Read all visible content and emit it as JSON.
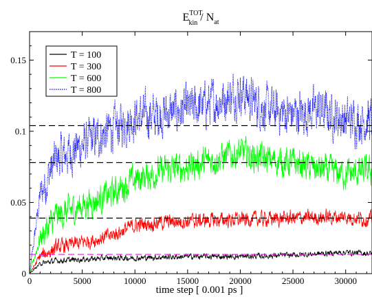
{
  "chart_data": {
    "type": "line",
    "title": {
      "main": "E",
      "superscript": "TOT",
      "subscript": "kin",
      "separator": " / N",
      "subscript2": "at"
    },
    "xlabel": "time step [ 0.001 ps ]",
    "ylabel": "",
    "xlim": [
      0,
      32500
    ],
    "ylim": [
      0,
      0.17
    ],
    "xticks": [
      0,
      5000,
      10000,
      15000,
      20000,
      25000,
      30000
    ],
    "xtick_labels": [
      "0",
      "5000",
      "10000",
      "15000",
      "20000",
      "25000",
      "30000"
    ],
    "yticks": [
      0,
      0.05,
      0.1,
      0.15
    ],
    "ytick_labels": [
      "0",
      "0.05",
      "0.1",
      "0.15"
    ],
    "legend_position": "top-left",
    "series": [
      {
        "name": "T = 100",
        "color": "#000000",
        "style": "solid",
        "x": [
          0,
          1000,
          2500,
          5000,
          7500,
          10000,
          15000,
          20000,
          25000,
          30000,
          32500
        ],
        "y": [
          0.0,
          0.007,
          0.009,
          0.01,
          0.011,
          0.011,
          0.012,
          0.012,
          0.013,
          0.015,
          0.014
        ],
        "noise": 0.0015
      },
      {
        "name": "T = 300",
        "color": "#ff0000",
        "style": "solid",
        "x": [
          0,
          1000,
          2500,
          5000,
          7500,
          10000,
          12500,
          15000,
          20000,
          25000,
          30000,
          32500
        ],
        "y": [
          0.0,
          0.012,
          0.018,
          0.022,
          0.026,
          0.034,
          0.036,
          0.037,
          0.038,
          0.039,
          0.04,
          0.038
        ],
        "noise": 0.004
      },
      {
        "name": "T = 600",
        "color": "#00ff00",
        "style": "solid",
        "x": [
          0,
          1000,
          2500,
          5000,
          7500,
          10000,
          12500,
          15000,
          17500,
          20000,
          22500,
          25000,
          27500,
          30000,
          32500
        ],
        "y": [
          0.0,
          0.025,
          0.04,
          0.048,
          0.055,
          0.066,
          0.072,
          0.075,
          0.08,
          0.085,
          0.08,
          0.078,
          0.073,
          0.07,
          0.072
        ],
        "noise": 0.008
      },
      {
        "name": "T = 800",
        "color": "#0000ff",
        "style": "dotted",
        "x": [
          0,
          1000,
          2500,
          5000,
          7500,
          10000,
          12500,
          15000,
          17500,
          20000,
          22500,
          25000,
          27500,
          30000,
          32500
        ],
        "y": [
          0.0,
          0.055,
          0.08,
          0.09,
          0.1,
          0.11,
          0.112,
          0.115,
          0.12,
          0.128,
          0.115,
          0.112,
          0.115,
          0.108,
          0.108
        ],
        "noise": 0.012
      }
    ],
    "reference_lines": [
      {
        "y": 0.0135,
        "color": "#ff00ff",
        "style": "dashed"
      },
      {
        "y": 0.039,
        "color": "#000000",
        "style": "dashed"
      },
      {
        "y": 0.078,
        "color": "#000000",
        "style": "dashed"
      },
      {
        "y": 0.104,
        "color": "#000000",
        "style": "dashed"
      }
    ]
  }
}
